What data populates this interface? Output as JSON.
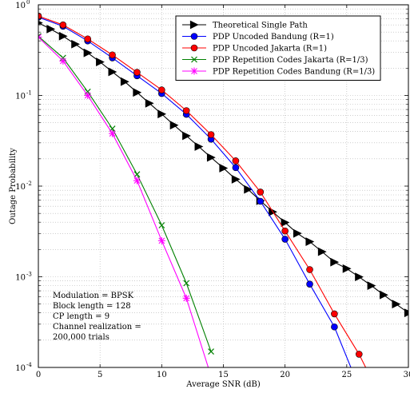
{
  "chart_data": {
    "type": "line",
    "xlabel": "Average SNR (dB)",
    "ylabel": "Outage Probability",
    "xlim": [
      0,
      30
    ],
    "ylim": [
      0.0001,
      1
    ],
    "yscale": "log",
    "grid": true,
    "legend_position": "top-right",
    "xticks": [
      0,
      5,
      10,
      15,
      20,
      25,
      30
    ],
    "xtick_labels": [
      "0",
      "5",
      "10",
      "15",
      "20",
      "25",
      "30"
    ],
    "yticks": [
      0.0001,
      0.001,
      0.01,
      0.1,
      1
    ],
    "ytick_labels": [
      {
        "base": "10",
        "exp": "-4"
      },
      {
        "base": "10",
        "exp": "-3"
      },
      {
        "base": "10",
        "exp": "-2"
      },
      {
        "base": "10",
        "exp": "-1"
      },
      {
        "base": "10",
        "exp": "0"
      }
    ],
    "series": [
      {
        "name": "Theoretical Single Path",
        "color": "#000000",
        "marker": "triangle-right",
        "x": [
          0,
          1,
          2,
          3,
          4,
          5,
          6,
          7,
          8,
          9,
          10,
          11,
          12,
          13,
          14,
          15,
          16,
          17,
          18,
          19,
          20,
          21,
          22,
          23,
          24,
          25,
          26,
          27,
          28,
          29,
          30
        ],
        "y": [
          0.632,
          0.54,
          0.451,
          0.368,
          0.295,
          0.234,
          0.182,
          0.142,
          0.108,
          0.082,
          0.0624,
          0.047,
          0.0359,
          0.0273,
          0.0207,
          0.0158,
          0.0119,
          0.0092,
          0.0069,
          0.0052,
          0.00397,
          0.00301,
          0.00244,
          0.00189,
          0.00145,
          0.00123,
          0.000997,
          0.000798,
          0.000631,
          0.0005,
          0.0004
        ]
      },
      {
        "name": "PDP Uncoded Bandung (R=1)",
        "color": "#0000ff",
        "marker": "circle",
        "x": [
          0,
          2,
          4,
          6,
          8,
          10,
          12,
          14,
          16,
          18,
          20,
          22,
          24,
          26
        ],
        "y": [
          0.73,
          0.58,
          0.4,
          0.26,
          0.165,
          0.105,
          0.062,
          0.033,
          0.016,
          0.0068,
          0.0026,
          0.00083,
          0.00028,
          6e-05
        ]
      },
      {
        "name": "PDP Uncoded Jakarta (R=1)",
        "color": "#ff0000",
        "marker": "circle",
        "x": [
          0,
          2,
          4,
          6,
          8,
          10,
          12,
          14,
          16,
          18,
          20,
          22,
          24,
          26,
          28
        ],
        "y": [
          0.75,
          0.6,
          0.42,
          0.28,
          0.18,
          0.115,
          0.068,
          0.037,
          0.019,
          0.0086,
          0.0032,
          0.0012,
          0.00039,
          0.00014,
          4e-05
        ]
      },
      {
        "name": "PDP Repetition Codes Jakarta (R=1/3)",
        "color": "#008000",
        "marker": "x",
        "x": [
          0,
          2,
          4,
          6,
          8,
          10,
          12,
          14
        ],
        "y": [
          0.45,
          0.26,
          0.11,
          0.043,
          0.0135,
          0.0037,
          0.00085,
          0.00015
        ]
      },
      {
        "name": "PDP Repetition Codes Bandung (R=1/3)",
        "color": "#ff00ff",
        "marker": "star",
        "x": [
          0,
          2,
          4,
          6,
          8,
          10,
          12,
          14
        ],
        "y": [
          0.44,
          0.24,
          0.1,
          0.038,
          0.0115,
          0.0025,
          0.00058,
          8e-05
        ]
      }
    ],
    "annotation_lines": [
      "Modulation = BPSK",
      "Block length = 128",
      "CP length = 9",
      "Channel realization =",
      "200,000 trials"
    ]
  }
}
